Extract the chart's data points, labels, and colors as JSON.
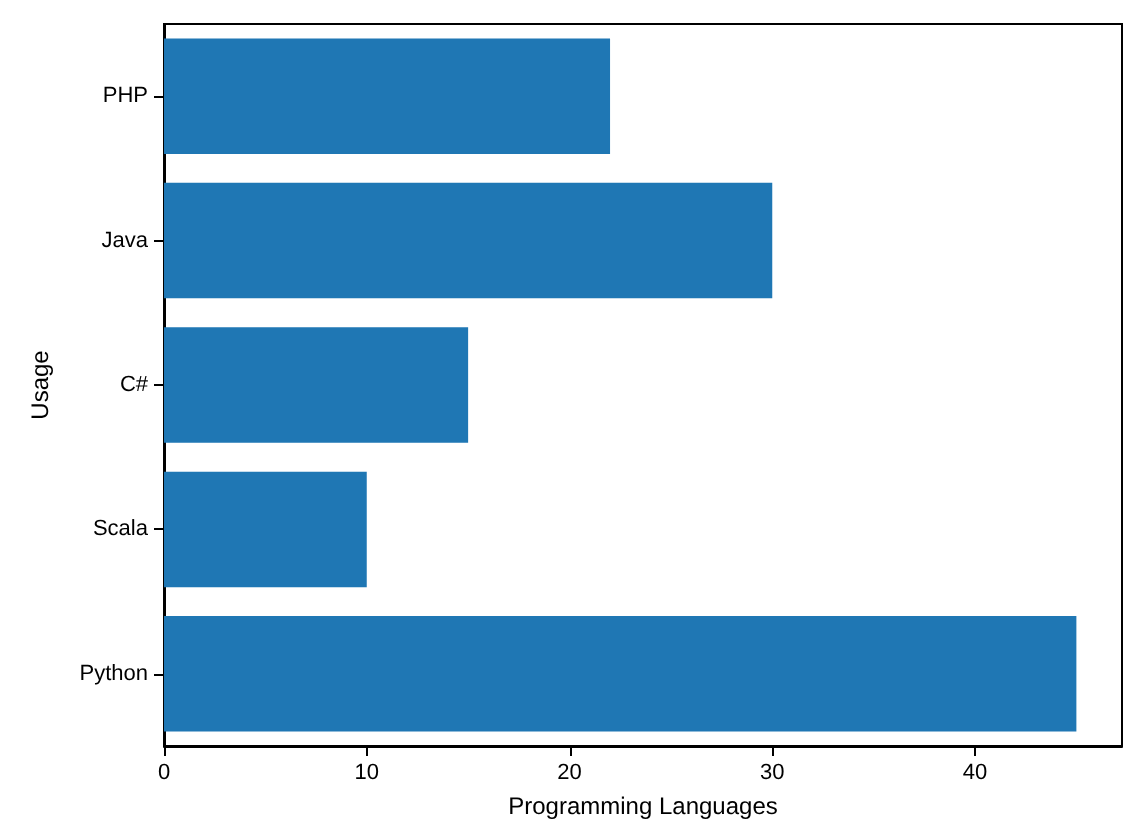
{
  "chart_data": {
    "type": "bar",
    "orientation": "horizontal",
    "xlabel": "Programming Languages",
    "ylabel": "Usage",
    "categories": [
      "PHP",
      "Java",
      "C#",
      "Scala",
      "Python"
    ],
    "values": [
      22,
      30,
      15,
      10,
      45
    ],
    "color": "#1f77b4",
    "xlim": [
      0,
      47.25
    ],
    "xticks": [
      0,
      10,
      20,
      30,
      40
    ],
    "grid": false
  }
}
